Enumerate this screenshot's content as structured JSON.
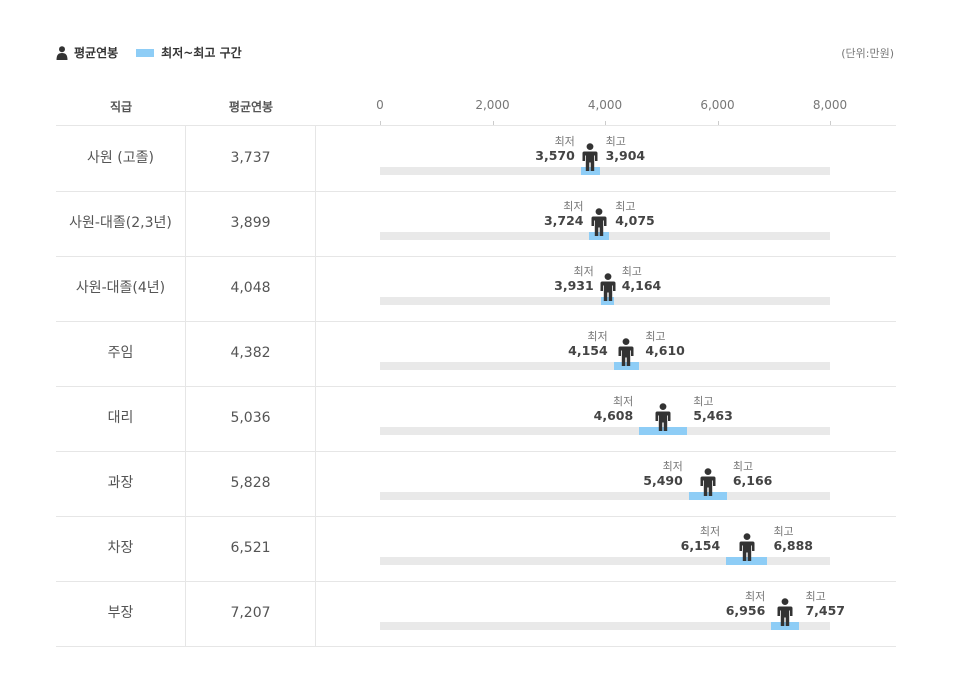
{
  "legend": {
    "avg_label": "평균연봉",
    "range_label": "최저~최고 구간"
  },
  "unit": "(단위:만원)",
  "columns": {
    "grade": "직급",
    "avg": "평균연봉"
  },
  "colors": {
    "range": "#8ecdf6",
    "track": "#e9e9e9",
    "person": "#333333"
  },
  "min_label": "최저",
  "max_label": "최고",
  "chart_data": {
    "type": "bar",
    "xlim": [
      0,
      8000
    ],
    "x_ticks": [
      "0",
      "2,000",
      "4,000",
      "6,000",
      "8,000"
    ],
    "tick_values": [
      0,
      2000,
      4000,
      6000,
      8000
    ],
    "rows": [
      {
        "grade": "사원 (고졸)",
        "avg": 3737,
        "avg_text": "3,737",
        "min": 3570,
        "min_text": "3,570",
        "max": 3904,
        "max_text": "3,904"
      },
      {
        "grade": "사원-대졸(2,3년)",
        "avg": 3899,
        "avg_text": "3,899",
        "min": 3724,
        "min_text": "3,724",
        "max": 4075,
        "max_text": "4,075"
      },
      {
        "grade": "사원-대졸(4년)",
        "avg": 4048,
        "avg_text": "4,048",
        "min": 3931,
        "min_text": "3,931",
        "max": 4164,
        "max_text": "4,164"
      },
      {
        "grade": "주임",
        "avg": 4382,
        "avg_text": "4,382",
        "min": 4154,
        "min_text": "4,154",
        "max": 4610,
        "max_text": "4,610"
      },
      {
        "grade": "대리",
        "avg": 5036,
        "avg_text": "5,036",
        "min": 4608,
        "min_text": "4,608",
        "max": 5463,
        "max_text": "5,463"
      },
      {
        "grade": "과장",
        "avg": 5828,
        "avg_text": "5,828",
        "min": 5490,
        "min_text": "5,490",
        "max": 6166,
        "max_text": "6,166"
      },
      {
        "grade": "차장",
        "avg": 6521,
        "avg_text": "6,521",
        "min": 6154,
        "min_text": "6,154",
        "max": 6888,
        "max_text": "6,888"
      },
      {
        "grade": "부장",
        "avg": 7207,
        "avg_text": "7,207",
        "min": 6956,
        "min_text": "6,956",
        "max": 7457,
        "max_text": "7,457"
      }
    ]
  }
}
